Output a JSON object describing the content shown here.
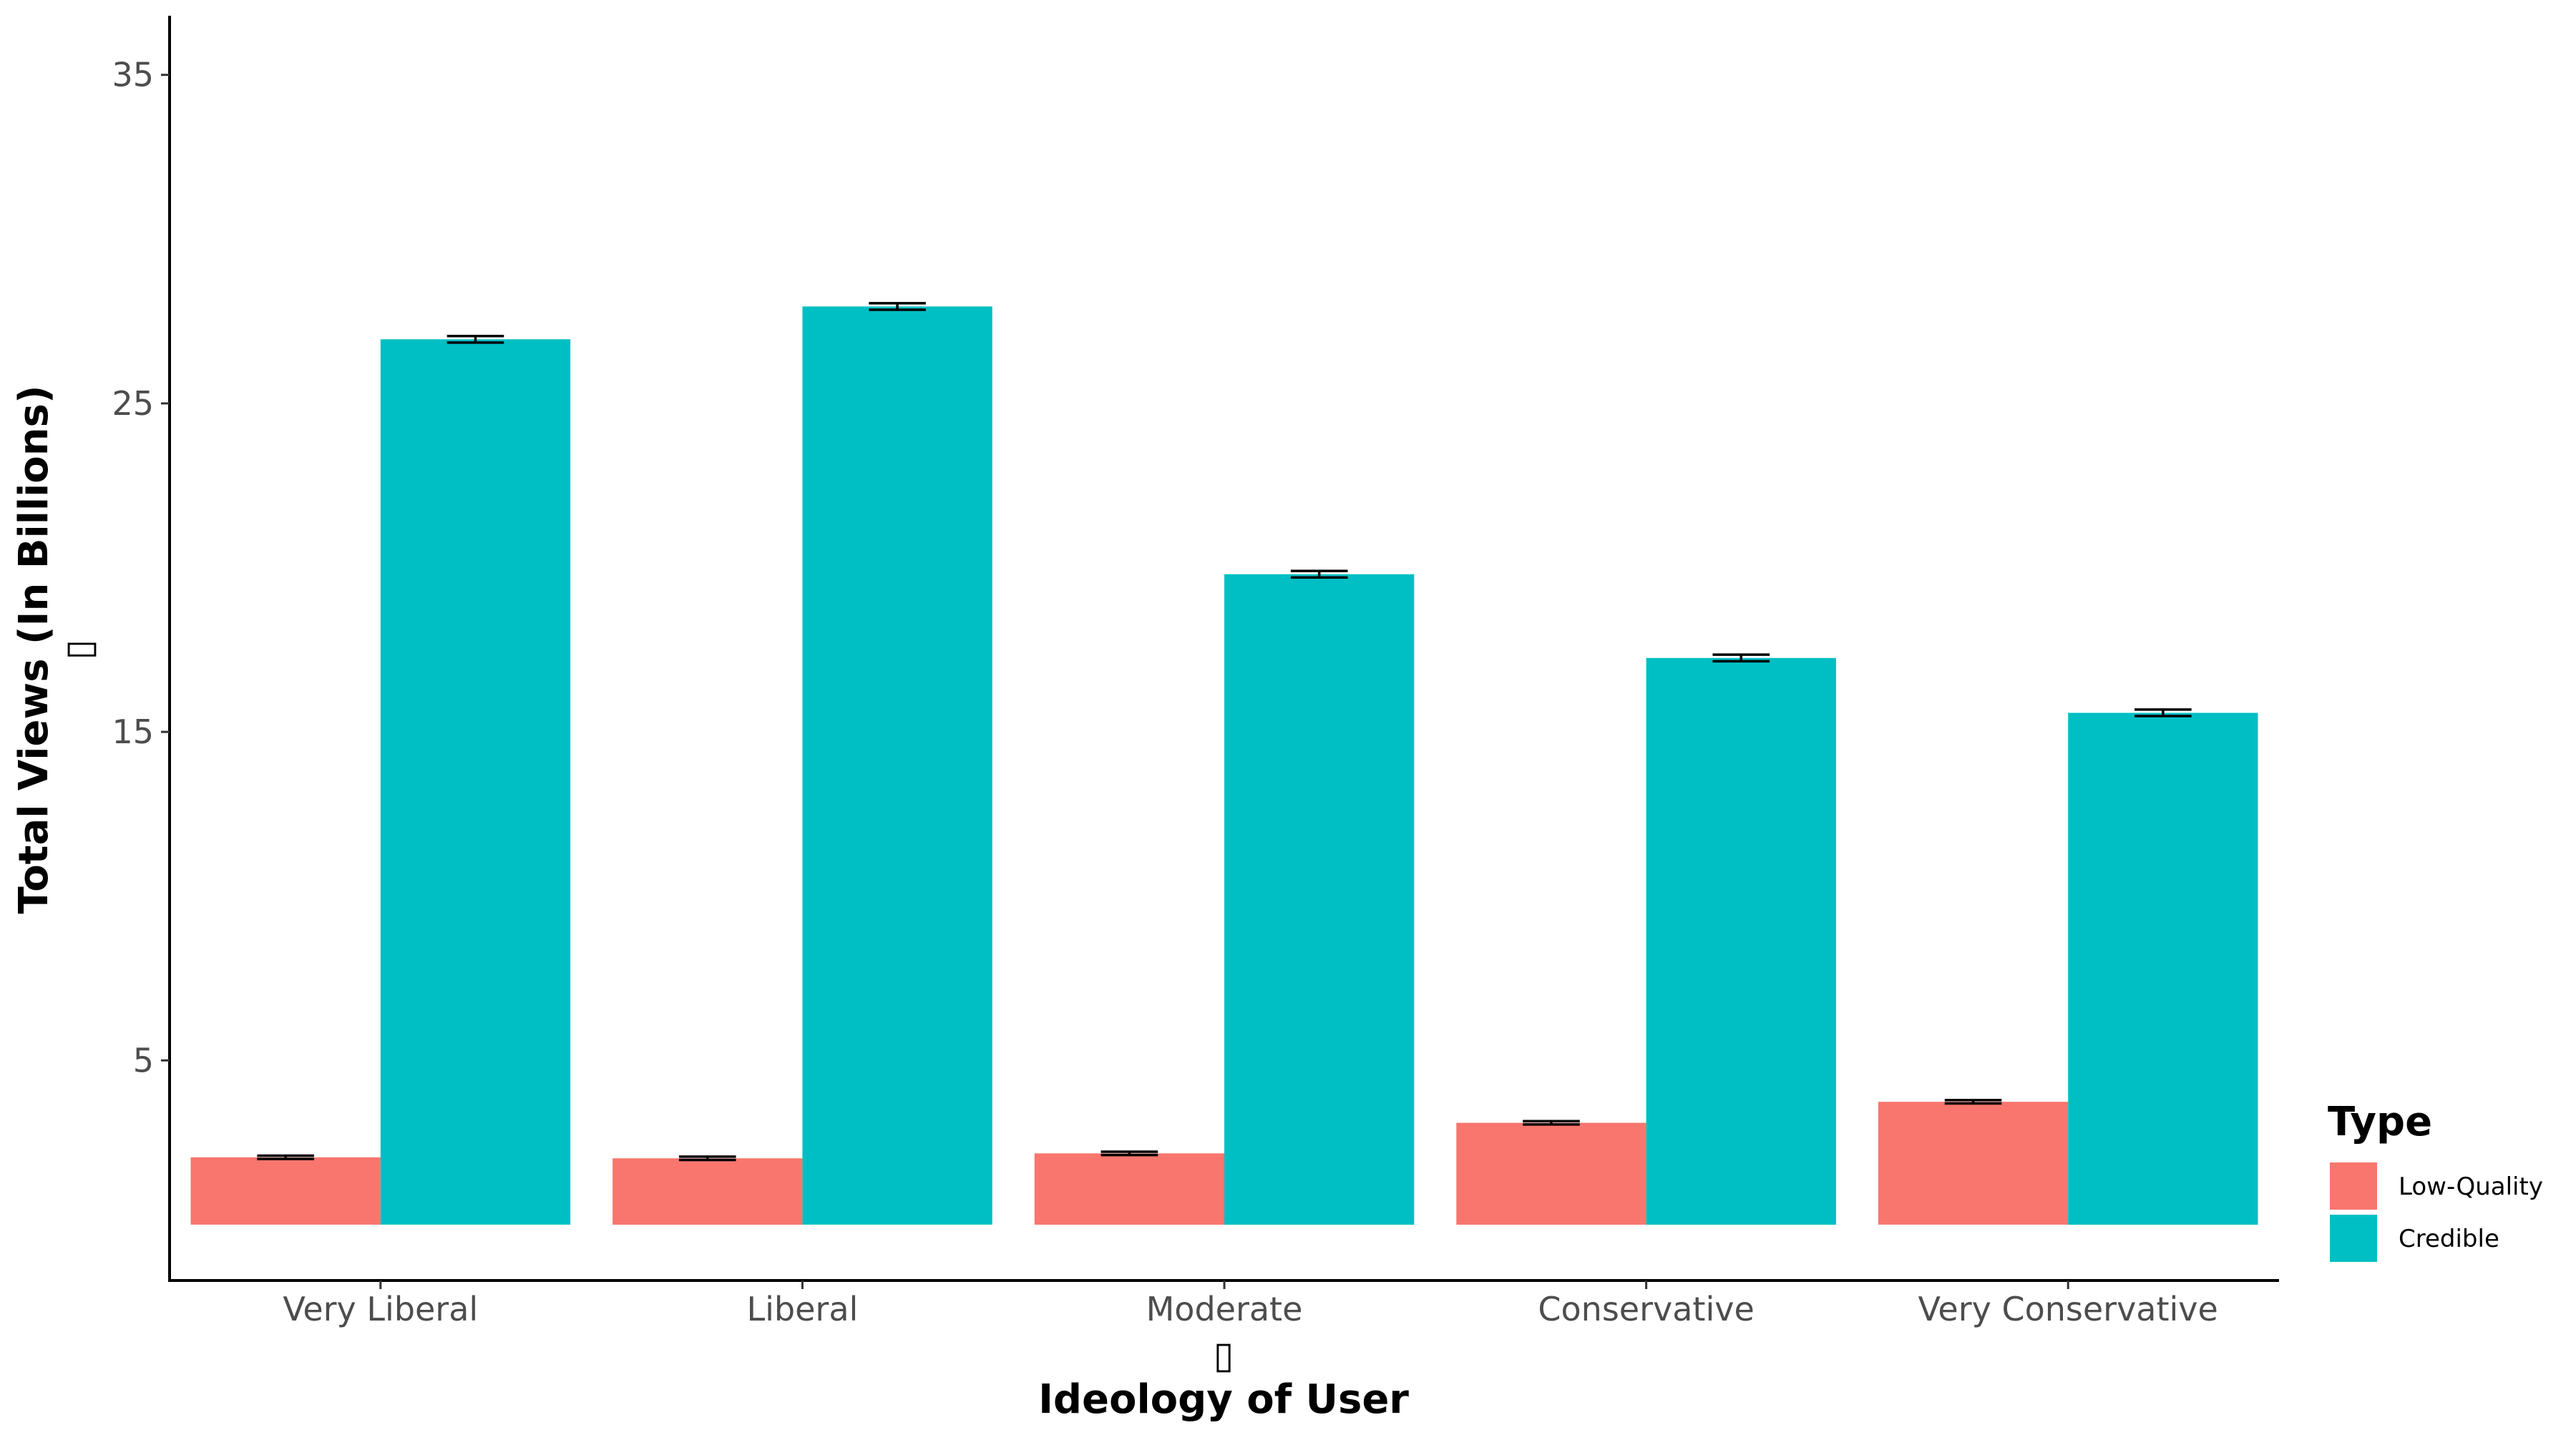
{
  "chart_data": {
    "type": "bar",
    "title": "",
    "xlabel": "Ideology of User",
    "ylabel": "Total Views (In Billions)",
    "xlabel_glyph": "▯",
    "ylabel_glyph": "▯",
    "categories": [
      "Very Liberal",
      "Liberal",
      "Moderate",
      "Conservative",
      "Very Conservative"
    ],
    "series": [
      {
        "name": "Low-Quality",
        "color": "#F8766D",
        "values": [
          2.05,
          2.02,
          2.17,
          3.1,
          3.74
        ]
      },
      {
        "name": "Credible",
        "color": "#00BFC4",
        "values": [
          26.95,
          27.95,
          19.8,
          17.25,
          15.58
        ]
      }
    ],
    "errors": {
      "Low-Quality": [
        0.05,
        0.05,
        0.05,
        0.05,
        0.05
      ],
      "Credible": [
        0.1,
        0.1,
        0.1,
        0.1,
        0.1
      ]
    },
    "yticks": [
      5,
      15,
      25,
      35
    ],
    "ylim": [
      -1.7,
      36.8
    ],
    "grid": false,
    "legend": {
      "title": "Type",
      "position": "right"
    }
  }
}
